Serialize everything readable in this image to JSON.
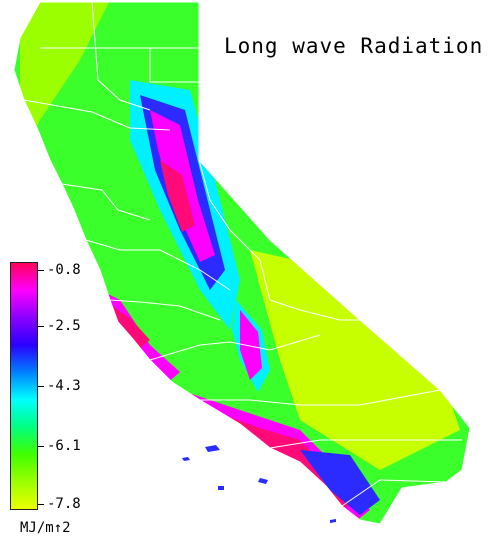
{
  "title": "Long wave Radiation",
  "legend": {
    "labels": [
      "-0.8",
      "-2.5",
      "-4.3",
      "-6.1",
      "-7.8"
    ],
    "units": "MJ/m↑2",
    "colors": [
      "#ff005a",
      "#ff00ff",
      "#8b00ff",
      "#2b00ff",
      "#0080ff",
      "#00ffff",
      "#00ff80",
      "#40ff00",
      "#9bff00",
      "#ecff00"
    ]
  },
  "map_colors": {
    "boundary": "#ffffff",
    "green": "#33ff22",
    "yellow": "#c8ff00",
    "cyan": "#00f0ff",
    "blue": "#2b2bff",
    "magenta": "#ff00ff",
    "pink": "#ff0a78"
  }
}
